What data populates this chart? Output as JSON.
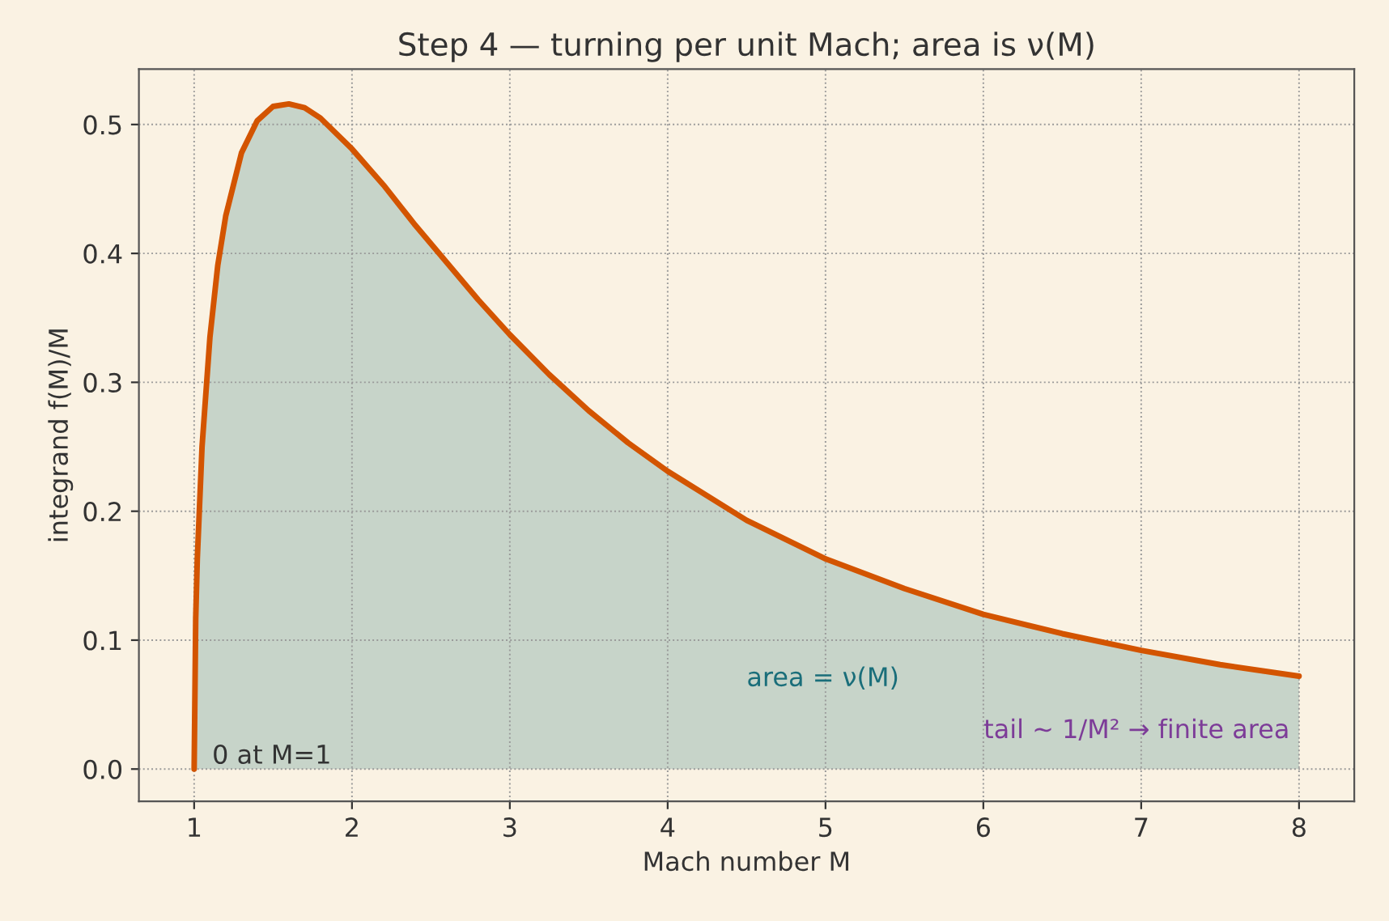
{
  "chart_data": {
    "type": "line",
    "title": "Step 4 — turning per unit Mach; area is ν(M)",
    "xlabel": "Mach number M",
    "ylabel": "integrand f(M)/M",
    "x": [
      1.0,
      1.01,
      1.02,
      1.05,
      1.1,
      1.15,
      1.2,
      1.3,
      1.4,
      1.5,
      1.6,
      1.7,
      1.8,
      2.0,
      2.2,
      2.4,
      2.6,
      2.8,
      3.0,
      3.25,
      3.5,
      3.75,
      4.0,
      4.5,
      5.0,
      5.5,
      6.0,
      6.5,
      7.0,
      7.5,
      8.0
    ],
    "series": [
      {
        "color": "#d35400",
        "values": [
          0.0,
          0.117,
          0.163,
          0.25,
          0.335,
          0.391,
          0.429,
          0.478,
          0.503,
          0.514,
          0.516,
          0.513,
          0.505,
          0.481,
          0.453,
          0.422,
          0.393,
          0.364,
          0.337,
          0.306,
          0.278,
          0.253,
          0.231,
          0.193,
          0.163,
          0.14,
          0.12,
          0.105,
          0.092,
          0.081,
          0.072
        ],
        "lower": [
          0.0,
          0.0,
          0.0,
          0.0,
          0.0,
          0.0,
          0.0,
          0.0,
          0.0,
          0.0,
          0.0,
          0.0,
          0.0,
          0.0,
          0.0,
          0.0,
          0.0,
          0.0,
          0.0,
          0.0,
          0.0,
          0.0,
          0.0,
          0.0,
          0.0,
          0.0,
          0.0,
          0.0,
          0.0,
          0.0,
          0.0
        ],
        "upper": [
          0.0,
          0.117,
          0.163,
          0.25,
          0.335,
          0.391,
          0.429,
          0.478,
          0.503,
          0.514,
          0.516,
          0.513,
          0.505,
          0.481,
          0.453,
          0.422,
          0.393,
          0.364,
          0.337,
          0.306,
          0.278,
          0.253,
          0.231,
          0.193,
          0.163,
          0.14,
          0.12,
          0.105,
          0.092,
          0.081,
          0.072
        ]
      }
    ],
    "annotations": [
      "area = ν(M)",
      "tail ~ 1/M² → finite area",
      {
        "text": "0 at M=1",
        "x": 1,
        "y": 0.0
      }
    ],
    "xlim": [
      0.65,
      8.35
    ],
    "ylim": [
      -0.025,
      0.543
    ],
    "xticks": [
      1,
      2,
      3,
      4,
      5,
      6,
      7,
      8
    ],
    "yticks": [
      {
        "value": 0,
        "label": "0.0"
      },
      0.1,
      0.2,
      0.3,
      0.4,
      0.5
    ],
    "grid": true,
    "line_style": "solid",
    "marker": "none"
  }
}
